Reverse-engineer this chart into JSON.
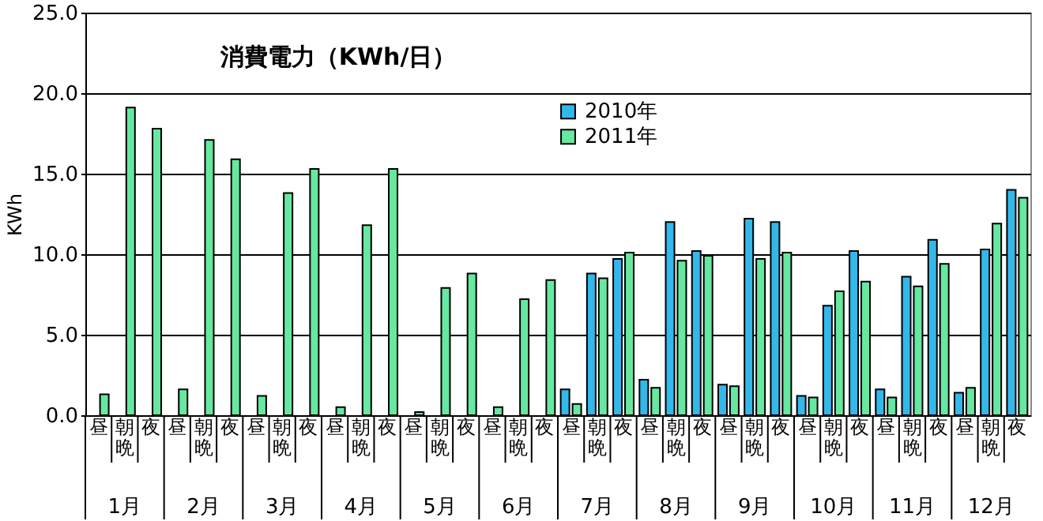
{
  "chart_data": {
    "type": "bar",
    "title": "消費電力（KWh/日）",
    "ylabel": "KWh",
    "categories": [
      "昼",
      "朝晩",
      "夜",
      "昼",
      "朝晩",
      "夜",
      "昼",
      "朝晩",
      "夜",
      "昼",
      "朝晩",
      "夜",
      "昼",
      "朝晩",
      "夜",
      "昼",
      "朝晩",
      "夜",
      "昼",
      "朝晩",
      "夜",
      "昼",
      "朝晩",
      "夜",
      "昼",
      "朝晩",
      "夜",
      "昼",
      "朝晩",
      "夜",
      "昼",
      "朝晩",
      "夜",
      "昼",
      "朝晩",
      "夜"
    ],
    "annotations": [
      "1月",
      "2月",
      "3月",
      "4月",
      "5月",
      "6月",
      "7月",
      "8月",
      "9月",
      "10月",
      "11月",
      "12月"
    ],
    "series": [
      {
        "name": "2010年",
        "color": "#33b8ea",
        "values": [
          null,
          null,
          null,
          null,
          null,
          null,
          null,
          null,
          null,
          null,
          null,
          null,
          null,
          null,
          null,
          null,
          null,
          null,
          1.6,
          8.8,
          9.7,
          2.2,
          12.0,
          10.2,
          1.9,
          12.2,
          12.0,
          1.2,
          6.8,
          10.2,
          1.6,
          8.6,
          10.9,
          1.4,
          10.3,
          14.0
        ]
      },
      {
        "name": "2011年",
        "color": "#66e8a0",
        "values": [
          1.3,
          19.1,
          17.8,
          1.6,
          17.1,
          15.9,
          1.2,
          13.8,
          15.3,
          0.5,
          11.8,
          15.3,
          0.2,
          7.9,
          8.8,
          0.5,
          7.2,
          8.4,
          0.7,
          8.5,
          10.1,
          1.7,
          9.6,
          9.9,
          1.8,
          9.7,
          10.1,
          1.1,
          7.7,
          8.3,
          1.1,
          8.0,
          9.4,
          1.7,
          11.9,
          13.5
        ]
      }
    ],
    "ylim": [
      0,
      25
    ],
    "yticks": [
      {
        "value": 0,
        "label": "0.0"
      },
      {
        "value": 5,
        "label": "5.0"
      },
      {
        "value": 10,
        "label": "10.0"
      },
      {
        "value": 15,
        "label": "15.0"
      },
      {
        "value": 20,
        "label": "20.0"
      },
      {
        "value": 25,
        "label": "25.0"
      }
    ],
    "grid": "y",
    "legend": "top"
  }
}
